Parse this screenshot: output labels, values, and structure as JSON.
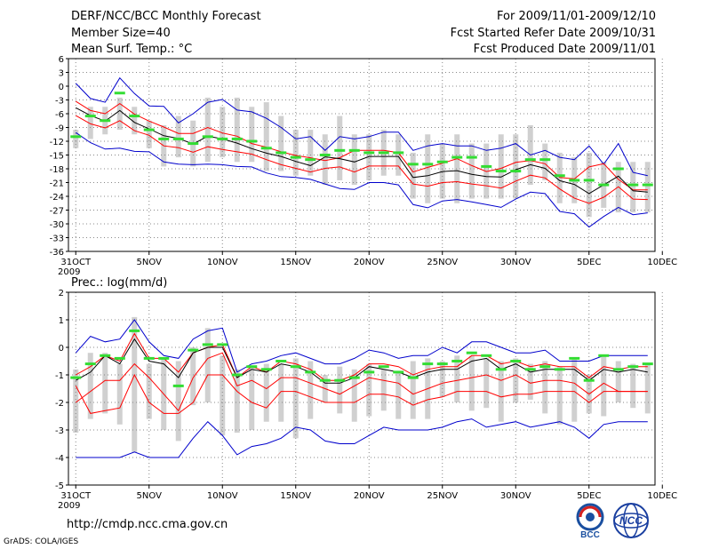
{
  "header": {
    "title": "DERF/NCC/BCC Monthly Forecast",
    "member_size": "Member Size=40",
    "variable": "Mean Surf. Temp.: °C",
    "period": "For 2009/11/01-2009/12/10",
    "started": "Fcst Started Refer Date 2009/10/31",
    "produced": "Fcst Produced Date 2009/11/01"
  },
  "footer": {
    "url": "http://cmdp.ncc.cma.gov.cn",
    "credit": "GrADS: COLA/IGES",
    "logo_bcc": "BCC",
    "logo_ncc": "NCC"
  },
  "colors": {
    "ensemble_mean": "#000000",
    "spread_band": "#ff0000",
    "extremes": "#0000cc",
    "observed_bar": "#33dd33",
    "member_range": "#d0d0d0",
    "grid": "#888888"
  },
  "chart_data": [
    {
      "type": "line",
      "title": "Mean Surf. Temp.: °C",
      "x_ticks": [
        "31OCT",
        "5NOV",
        "10NOV",
        "15NOV",
        "20NOV",
        "25NOV",
        "30NOV",
        "5DEC",
        "10DEC"
      ],
      "x_year": "2009",
      "ylim": [
        -36,
        6
      ],
      "y_ticks": [
        6,
        3,
        0,
        -3,
        -6,
        -9,
        -12,
        -15,
        -18,
        -21,
        -24,
        -27,
        -30,
        -33,
        -36
      ],
      "series": [
        {
          "name": "max",
          "values": [
            0.6,
            -2.7,
            -3.5,
            1.8,
            -1.6,
            -4.3,
            -4.4,
            -8,
            -6,
            -3.5,
            -2.9,
            -5.2,
            -5.6,
            -7,
            -9,
            -11.5,
            -11,
            -14,
            -11,
            -11.5,
            -11,
            -10,
            -10,
            -14,
            -13,
            -12.5,
            -13,
            -13,
            -14,
            -13.5,
            -12.5,
            -15,
            -14,
            -15.5,
            -16,
            -13,
            -17,
            -12.5,
            -18.8,
            -19.5
          ]
        },
        {
          "name": "upper",
          "values": [
            -3.3,
            -5.3,
            -6,
            -3.8,
            -6.1,
            -7.6,
            -8.9,
            -10.3,
            -10.3,
            -9,
            -10.2,
            -10.9,
            -12.5,
            -13.3,
            -14.3,
            -15.1,
            -15.6,
            -16.2,
            -15.6,
            -14,
            -14,
            -14,
            -14.5,
            -18.7,
            -17.7,
            -16.8,
            -15.8,
            -17.3,
            -18.6,
            -17.9,
            -16.6,
            -16.2,
            -16.9,
            -19.9,
            -20.2,
            -17.6,
            -16.9,
            -20.3,
            -22.6,
            -22.6
          ]
        },
        {
          "name": "mean",
          "values": [
            -4.7,
            -6.4,
            -7.6,
            -5.3,
            -7.9,
            -9.3,
            -10.8,
            -11.4,
            -12.6,
            -10.9,
            -11.5,
            -12.4,
            -13.6,
            -14.6,
            -15.3,
            -16.4,
            -17.3,
            -15.4,
            -15.8,
            -16.5,
            -15.3,
            -15.3,
            -15.3,
            -19.9,
            -19.5,
            -18.6,
            -18.4,
            -19.2,
            -19.7,
            -19.8,
            -18.2,
            -17.1,
            -17.9,
            -20.6,
            -21.4,
            -23.4,
            -21.5,
            -19.6,
            -22.8,
            -23.1
          ]
        },
        {
          "name": "lower",
          "values": [
            -6.4,
            -8.2,
            -9.1,
            -7.5,
            -9.7,
            -10.7,
            -13,
            -13.4,
            -14.4,
            -13.2,
            -13.8,
            -14.3,
            -14.8,
            -16,
            -17.1,
            -17.9,
            -18.7,
            -17.9,
            -17.6,
            -18.7,
            -17.4,
            -17.4,
            -17.4,
            -21.3,
            -21.8,
            -21,
            -20.8,
            -21.3,
            -21.7,
            -22.2,
            -20.7,
            -19.4,
            -20,
            -22.4,
            -24.4,
            -25.5,
            -24.2,
            -21.9,
            -24.6,
            -24.7
          ]
        },
        {
          "name": "min",
          "values": [
            -10.1,
            -12.3,
            -13.7,
            -13.5,
            -14.2,
            -14.3,
            -16.5,
            -17,
            -17.1,
            -17,
            -17.1,
            -17.5,
            -17.6,
            -18.9,
            -19.7,
            -19.9,
            -20.3,
            -21.3,
            -22.3,
            -22.5,
            -21,
            -21,
            -21.5,
            -25.8,
            -26.5,
            -25,
            -24.7,
            -25.2,
            -25.8,
            -26.4,
            -24.6,
            -23.1,
            -23.4,
            -27.3,
            -27.8,
            -30.7,
            -28.4,
            -26.4,
            -28,
            -27.6
          ]
        },
        {
          "name": "observed",
          "values": [
            -11,
            -6.5,
            -7.5,
            -1.5,
            -6.5,
            -9.5,
            -11.5,
            -11.5,
            -12.5,
            -11,
            -11.5,
            -11.5,
            -12,
            -13.5,
            -14.5,
            -15.5,
            -16,
            -15,
            -14,
            -14,
            -14.5,
            -14.5,
            -14.5,
            -17,
            -17,
            -16.5,
            -15.5,
            -15.5,
            -17.5,
            -18.5,
            -18.5,
            -16,
            -16,
            -19.5,
            -20.5,
            -20.5,
            -21.5,
            -18,
            -21.5,
            -21.5
          ]
        },
        {
          "name": "range_top",
          "values": [
            -9.5,
            -4.5,
            -4.5,
            -2.5,
            -4.5,
            -7.5,
            -8.5,
            -6.5,
            -7.5,
            -2.5,
            -4.5,
            -2.5,
            -4.5,
            -3.5,
            -6.5,
            -9.5,
            -9.5,
            -10.5,
            -6.5,
            -10.5,
            -10.5,
            -9.5,
            -10.5,
            -14.5,
            -10.5,
            -12.5,
            -10.5,
            -12.5,
            -12.5,
            -10.5,
            -10.5,
            -8.5,
            -12.5,
            -14.5,
            -15.5,
            -14.5,
            -16.5,
            -16.5,
            -16.5,
            -16.5
          ]
        },
        {
          "name": "range_bottom",
          "values": [
            -13.5,
            -11.5,
            -10.5,
            -9.5,
            -10.5,
            -13.5,
            -17.5,
            -15.5,
            -17.5,
            -16.5,
            -15.5,
            -16.5,
            -16.5,
            -18.5,
            -18.5,
            -19.5,
            -19.5,
            -21.5,
            -20.5,
            -21.5,
            -20.5,
            -19.5,
            -19.5,
            -24.5,
            -25.5,
            -24.5,
            -25.5,
            -24.5,
            -24.5,
            -24.5,
            -24.5,
            -21.5,
            -20.5,
            -25.5,
            -25.5,
            -28.5,
            -26.5,
            -27.5,
            -27.5,
            -27.5
          ]
        }
      ]
    },
    {
      "type": "line",
      "title": "Prec.: log(mm/d)",
      "x_ticks": [
        "31OCT",
        "5NOV",
        "10NOV",
        "15NOV",
        "20NOV",
        "25NOV",
        "30NOV",
        "5DEC",
        "10DEC"
      ],
      "x_year": "2009",
      "ylim": [
        -5,
        2
      ],
      "y_ticks": [
        2,
        1,
        0,
        -1,
        -2,
        -3,
        -4,
        -5
      ],
      "series": [
        {
          "name": "max",
          "values": [
            -0.2,
            0.4,
            0.2,
            0.3,
            1.0,
            0.2,
            -0.3,
            -0.4,
            0.3,
            0.6,
            0.7,
            -0.9,
            -0.6,
            -0.5,
            -0.3,
            -0.2,
            -0.4,
            -0.6,
            -0.6,
            -0.4,
            -0.1,
            -0.2,
            -0.4,
            -0.3,
            -0.3,
            0.0,
            -0.2,
            0.2,
            0.2,
            0.0,
            -0.2,
            -0.2,
            -0.1,
            -0.5,
            -0.5,
            -0.5,
            -0.3,
            -0.3,
            -0.3,
            -0.3
          ]
        },
        {
          "name": "upper",
          "values": [
            -1.0,
            -0.7,
            -0.3,
            -0.5,
            0.5,
            -0.4,
            -0.4,
            -0.9,
            -0.2,
            0.0,
            0.1,
            -1.1,
            -0.7,
            -0.9,
            -0.5,
            -0.6,
            -0.8,
            -1.2,
            -1.2,
            -1.0,
            -0.6,
            -0.6,
            -0.7,
            -1.0,
            -0.8,
            -0.7,
            -0.7,
            -0.3,
            -0.3,
            -0.6,
            -0.5,
            -0.7,
            -0.6,
            -0.7,
            -0.7,
            -1.1,
            -0.7,
            -0.8,
            -0.7,
            -0.7
          ]
        },
        {
          "name": "mean",
          "values": [
            -1.2,
            -0.9,
            -0.3,
            -0.6,
            0.3,
            -0.5,
            -0.6,
            -1.1,
            -0.2,
            0.0,
            0.0,
            -1.1,
            -0.8,
            -0.9,
            -0.6,
            -0.7,
            -0.9,
            -1.3,
            -1.3,
            -1.1,
            -0.7,
            -0.8,
            -0.9,
            -1.1,
            -0.9,
            -0.8,
            -0.8,
            -0.5,
            -0.4,
            -0.8,
            -0.6,
            -0.9,
            -0.8,
            -0.8,
            -0.8,
            -1.2,
            -0.8,
            -0.9,
            -0.8,
            -0.9
          ]
        },
        {
          "name": "lower",
          "values": [
            -2.0,
            -1.6,
            -1.2,
            -1.2,
            -0.6,
            -1.1,
            -1.7,
            -2.3,
            -1.1,
            -0.4,
            -0.2,
            -1.4,
            -1.2,
            -1.5,
            -1.1,
            -1.1,
            -1.3,
            -1.5,
            -1.7,
            -1.4,
            -1.1,
            -1.2,
            -1.3,
            -1.7,
            -1.5,
            -1.3,
            -1.2,
            -1.1,
            -1.0,
            -1.2,
            -1.0,
            -1.3,
            -1.2,
            -1.2,
            -1.3,
            -1.7,
            -1.3,
            -1.6,
            -1.6,
            -1.6
          ]
        },
        {
          "name": "lowest",
          "values": [
            -1.4,
            -2.4,
            -2.3,
            -2.2,
            -1.0,
            -2.0,
            -2.4,
            -2.4,
            -2.0,
            -1.0,
            -1.0,
            -1.6,
            -2.0,
            -2.2,
            -1.6,
            -1.6,
            -1.8,
            -2.0,
            -2.0,
            -2.0,
            -1.7,
            -1.7,
            -1.8,
            -2.1,
            -1.9,
            -1.8,
            -1.6,
            -1.6,
            -1.6,
            -1.8,
            -1.7,
            -1.7,
            -1.6,
            -1.6,
            -1.6,
            -2.0,
            -1.6,
            -1.6,
            -1.6,
            -1.6
          ]
        },
        {
          "name": "min",
          "values": [
            -4.0,
            -4.0,
            -4.0,
            -4.0,
            -3.8,
            -4.0,
            -4.0,
            -4.0,
            -3.3,
            -2.7,
            -3.2,
            -3.9,
            -3.6,
            -3.5,
            -3.3,
            -2.9,
            -3.0,
            -3.4,
            -3.5,
            -3.5,
            -3.2,
            -2.9,
            -3.0,
            -3.0,
            -3.0,
            -2.9,
            -2.7,
            -2.6,
            -2.9,
            -2.8,
            -2.7,
            -2.9,
            -2.8,
            -2.7,
            -2.9,
            -3.3,
            -2.8,
            -2.7,
            -2.7,
            -2.7
          ]
        },
        {
          "name": "observed",
          "values": [
            -1.1,
            -0.6,
            -0.3,
            -0.4,
            0.6,
            -0.4,
            -0.4,
            -1.4,
            -0.1,
            0.1,
            0.1,
            -1.0,
            -0.7,
            -0.8,
            -0.5,
            -0.7,
            -0.9,
            -1.2,
            -1.2,
            -1.1,
            -0.9,
            -0.7,
            -0.9,
            -1.1,
            -0.6,
            -0.6,
            -0.5,
            -0.2,
            -0.3,
            -0.8,
            -0.5,
            -0.8,
            -0.7,
            -0.8,
            -0.4,
            -1.2,
            -0.3,
            -0.8,
            -0.7,
            -0.6
          ]
        },
        {
          "name": "range_top",
          "values": [
            -0.8,
            -0.2,
            -0.2,
            -0.6,
            1.1,
            -0.6,
            -0.4,
            -0.5,
            0.0,
            0.7,
            -0.3,
            -0.8,
            -0.7,
            -0.6,
            -0.6,
            -0.4,
            -0.5,
            -1.0,
            -0.7,
            -0.8,
            -0.6,
            -0.8,
            -0.9,
            -0.5,
            -0.4,
            -0.5,
            -0.3,
            -0.3,
            -0.4,
            -0.5,
            -0.4,
            -0.6,
            -0.5,
            -0.7,
            -0.4,
            -1.0,
            -0.3,
            -0.5,
            -0.6,
            -0.6
          ]
        },
        {
          "name": "range_bottom",
          "values": [
            -3.1,
            -2.6,
            -2.4,
            -2.8,
            -3.8,
            -2.6,
            -3.0,
            -3.4,
            -2.1,
            -2.0,
            -3.2,
            -3.1,
            -3.0,
            -2.7,
            -2.7,
            -3.3,
            -2.6,
            -2.0,
            -2.4,
            -2.7,
            -2.5,
            -2.3,
            -2.6,
            -2.6,
            -2.6,
            -1.8,
            -2.0,
            -2.3,
            -2.2,
            -2.7,
            -2.0,
            -1.9,
            -2.4,
            -2.8,
            -2.7,
            -2.4,
            -2.5,
            -2.0,
            -2.2,
            -2.4
          ]
        }
      ]
    }
  ]
}
